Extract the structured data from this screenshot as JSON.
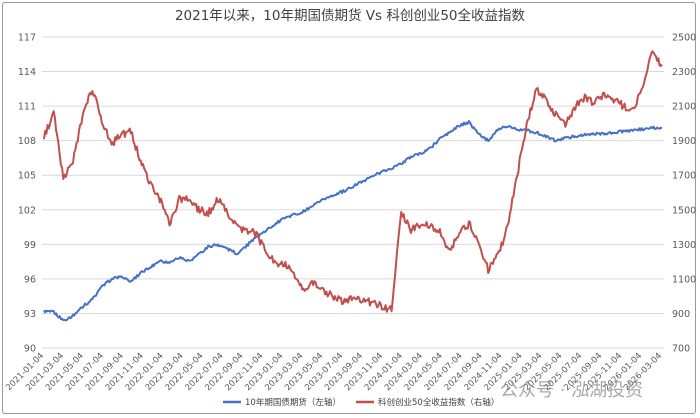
{
  "chart_data": {
    "type": "line",
    "title": "2021年以来，10年期国债期货 Vs 科创创业50全收益指数",
    "x_tick_labels": [
      "2021-01-04",
      "2021-03-04",
      "2021-05-04",
      "2021-07-04",
      "2021-09-04",
      "2021-11-04",
      "2022-01-04",
      "2022-03-04",
      "2022-05-04",
      "2022-07-04",
      "2022-09-04",
      "2022-11-04",
      "2023-01-04",
      "2023-03-04",
      "2023-05-04",
      "2023-07-04",
      "2023-09-04",
      "2023-11-04",
      "2024-01-04",
      "2024-03-04",
      "2024-05-04",
      "2024-07-04",
      "2024-09-04",
      "2024-11-04",
      "2025-01-04",
      "2025-03-04",
      "2025-05-04",
      "2025-07-04",
      "2025-09-04",
      "2025-11-04",
      "2026-01-04",
      "2026-03-04"
    ],
    "y_left": {
      "ticks": [
        "90",
        "93",
        "96",
        "99",
        "102",
        "105",
        "108",
        "111",
        "114",
        "117"
      ],
      "ylim": [
        90,
        117
      ]
    },
    "y_right": {
      "ticks": [
        "700",
        "900",
        "1100",
        "1300",
        "1500",
        "1700",
        "1900",
        "2100",
        "2300",
        "2500"
      ],
      "ylim": [
        700,
        2500
      ]
    },
    "grid": "horizontal",
    "legend_position": "bottom",
    "series": [
      {
        "name": "10年期国债期货（左轴）",
        "axis": "left",
        "color": "#4472C4",
        "x": [
          0,
          1,
          2,
          3,
          4,
          5,
          6,
          7,
          8,
          9,
          10,
          11,
          12,
          13,
          14,
          15,
          16,
          17,
          18,
          19,
          20,
          21,
          22,
          23,
          24,
          25,
          26,
          27,
          28,
          29,
          30,
          31,
          32,
          33,
          34,
          35,
          36,
          37,
          38,
          39,
          40,
          41,
          42,
          43,
          44,
          45,
          46,
          47,
          48,
          49,
          50,
          51,
          52,
          53,
          54,
          55,
          56,
          57,
          58,
          59,
          60,
          61,
          62,
          63,
          64
        ],
        "values": [
          93.2,
          93.1,
          92.4,
          92.8,
          93.6,
          94.2,
          95.3,
          96.0,
          96.2,
          95.8,
          96.5,
          97.0,
          97.6,
          97.4,
          97.9,
          97.5,
          98.1,
          98.8,
          99.0,
          98.6,
          98.2,
          98.9,
          99.6,
          100.2,
          100.8,
          101.3,
          101.6,
          101.9,
          102.4,
          102.9,
          103.3,
          103.6,
          104.0,
          104.5,
          104.9,
          105.3,
          105.6,
          106.0,
          106.6,
          106.9,
          107.3,
          108.2,
          108.7,
          109.3,
          109.6,
          108.6,
          108.0,
          109.0,
          109.3,
          109.0,
          108.9,
          108.7,
          108.4,
          108.0,
          108.2,
          108.4,
          108.5,
          108.6,
          108.6,
          108.7,
          108.8,
          108.9,
          109.0,
          109.1,
          109.1
        ]
      },
      {
        "name": "科创创业50全收益指数（右轴）",
        "axis": "right",
        "color": "#C0504D",
        "x": [
          0,
          1,
          2,
          3,
          4,
          5,
          6,
          7,
          8,
          9,
          10,
          11,
          12,
          13,
          14,
          15,
          16,
          17,
          18,
          19,
          20,
          21,
          22,
          23,
          24,
          25,
          26,
          27,
          28,
          29,
          30,
          31,
          32,
          33,
          34,
          35,
          36,
          37,
          38,
          39,
          40,
          41,
          42,
          43,
          44,
          45,
          46,
          47,
          48,
          49,
          50,
          51,
          52,
          53,
          54,
          55,
          56,
          57,
          58,
          59,
          60,
          61,
          62,
          63,
          64
        ],
        "values": [
          1920,
          2060,
          1680,
          1780,
          2050,
          2200,
          2020,
          1880,
          1940,
          1950,
          1780,
          1650,
          1560,
          1420,
          1560,
          1560,
          1500,
          1480,
          1560,
          1480,
          1400,
          1380,
          1360,
          1250,
          1190,
          1180,
          1120,
          1040,
          1080,
          1020,
          1000,
          960,
          1000,
          980,
          960,
          940,
          920,
          1490,
          1380,
          1420,
          1410,
          1380,
          1260,
          1360,
          1420,
          1320,
          1150,
          1230,
          1400,
          1700,
          2000,
          2200,
          2130,
          2050,
          2000,
          2100,
          2150,
          2120,
          2170,
          2140,
          2100,
          2080,
          2200,
          2420,
          2330
        ]
      }
    ],
    "legend": [
      "10年期国债期货（左轴）",
      "科创创业50全收益指数（右轴）"
    ]
  },
  "watermark": "公众号 · 泓湖投资"
}
